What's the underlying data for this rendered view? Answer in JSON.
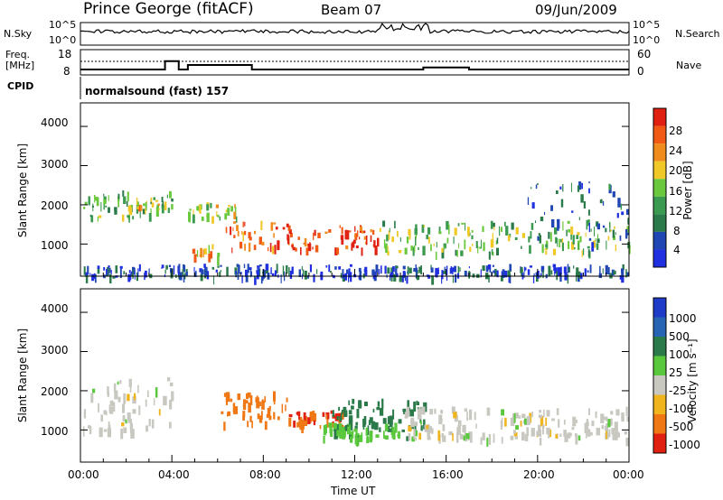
{
  "header": {
    "station": "Prince George (fitACF)",
    "beam": "Beam 07",
    "date": "09/Jun/2009"
  },
  "noise_panel": {
    "left_label": "N.Sky",
    "left_ticks": [
      "10^5",
      "10^0"
    ],
    "right_label": "N.Search",
    "right_ticks": [
      "10^5",
      "10^0"
    ]
  },
  "freq_panel": {
    "left_label_1": "Freq.",
    "left_label_2": "[MHz]",
    "left_ticks": [
      "18",
      "8"
    ],
    "right_label": "Nave",
    "right_ticks": [
      "60",
      "0"
    ]
  },
  "cpid": {
    "label": "CPID",
    "program": "normalsound (fast) 157"
  },
  "power_panel": {
    "ylabel": "Slant Range [km]",
    "yticks": [
      "4000",
      "3000",
      "2000",
      "1000"
    ],
    "colorbar_label": "Power [dB]",
    "colorbar_ticks": [
      "28",
      "24",
      "20",
      "16",
      "12",
      "8",
      "4"
    ],
    "colors": [
      "#2030e0",
      "#2046b4",
      "#2a7a4a",
      "#3a9a50",
      "#6ac83c",
      "#f0c828",
      "#f08c1e",
      "#f05a14",
      "#e02010"
    ]
  },
  "velocity_panel": {
    "ylabel": "Slant Range [km]",
    "yticks": [
      "4000",
      "3000",
      "2000",
      "1000"
    ],
    "colorbar_label": "Velocity [m s⁻¹]",
    "colorbar_ticks": [
      "1000",
      "500",
      "100",
      "25",
      "-25",
      "-100",
      "-500",
      "-1000"
    ],
    "colors": [
      "#1e3cc8",
      "#2864b4",
      "#2a7a4a",
      "#5ac83c",
      "#c8c8c0",
      "#f0b41e",
      "#f07814",
      "#e02010"
    ]
  },
  "xaxis": {
    "label": "Time UT",
    "ticks": [
      "00:00",
      "04:00",
      "08:00",
      "12:00",
      "16:00",
      "20:00",
      "00:00"
    ]
  },
  "chart_data": {
    "type": "heatmap",
    "title": "Prince George (fitACF)",
    "x_range_hours": [
      0,
      24
    ],
    "y_range_km": [
      180,
      4600
    ],
    "xlabel": "Time UT",
    "ylabel": "Slant Range [km]",
    "frequency_mhz": {
      "x": [
        0,
        3.3,
        3.7,
        4.3,
        4.7,
        7.0,
        7.5,
        11,
        15,
        17,
        24
      ],
      "values": [
        11.2,
        11.2,
        14.5,
        11.2,
        13.0,
        13.0,
        11.2,
        11.2,
        12.0,
        11.2,
        11.2
      ]
    },
    "echo_regions_power": [
      {
        "t": [
          0.1,
          4.0
        ],
        "range_km": [
          1700,
          2400
        ],
        "power_db": 14
      },
      {
        "t": [
          2.0,
          3.5
        ],
        "range_km": [
          1900,
          2200
        ],
        "power_db": 20
      },
      {
        "t": [
          4.7,
          6.8
        ],
        "range_km": [
          1700,
          2100
        ],
        "power_db": 18
      },
      {
        "t": [
          4.8,
          6.0
        ],
        "range_km": [
          700,
          1000
        ],
        "power_db": 22
      },
      {
        "t": [
          6.2,
          9.5
        ],
        "range_km": [
          900,
          1600
        ],
        "power_db": 26
      },
      {
        "t": [
          9.5,
          13.0
        ],
        "range_km": [
          900,
          1500
        ],
        "power_db": 28
      },
      {
        "t": [
          13.0,
          24.0
        ],
        "range_km": [
          800,
          1600
        ],
        "power_db": 16
      },
      {
        "t": [
          19.5,
          24.0
        ],
        "range_km": [
          1000,
          2600
        ],
        "power_db": 8
      },
      {
        "t": [
          0.0,
          24.0
        ],
        "range_km": [
          180,
          500
        ],
        "power_db": 6
      }
    ],
    "echo_regions_velocity": [
      {
        "t": [
          0.1,
          4.0
        ],
        "range_km": [
          1000,
          2400
        ],
        "velocity_ms": 0
      },
      {
        "t": [
          6.0,
          9.0
        ],
        "range_km": [
          1200,
          2000
        ],
        "velocity_ms": -400
      },
      {
        "t": [
          9.0,
          11.5
        ],
        "range_km": [
          1100,
          1500
        ],
        "velocity_ms": -500
      },
      {
        "t": [
          11.0,
          15.0
        ],
        "range_km": [
          1100,
          1800
        ],
        "velocity_ms": 300
      },
      {
        "t": [
          10.5,
          14.5
        ],
        "range_km": [
          800,
          1200
        ],
        "velocity_ms": 80
      },
      {
        "t": [
          14.0,
          24.0
        ],
        "range_km": [
          800,
          1600
        ],
        "velocity_ms": 0
      }
    ]
  }
}
